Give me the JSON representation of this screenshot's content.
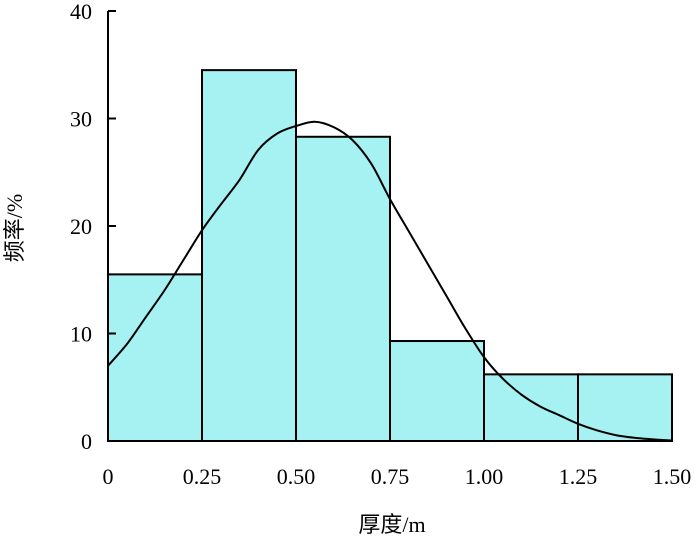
{
  "chart_data": {
    "type": "bar",
    "subtype": "histogram",
    "xlabel": "厚度/m",
    "ylabel": "频率/%",
    "xlim": [
      0,
      1.5
    ],
    "ylim": [
      0,
      40
    ],
    "x_ticks": [
      "0",
      "0.25",
      "0.50",
      "0.75",
      "1.00",
      "1.25",
      "1.50"
    ],
    "y_ticks": [
      "0",
      "10",
      "20",
      "30",
      "40"
    ],
    "bins": [
      {
        "from": 0.0,
        "to": 0.25,
        "value": 15.5
      },
      {
        "from": 0.25,
        "to": 0.5,
        "value": 34.5
      },
      {
        "from": 0.5,
        "to": 0.75,
        "value": 28.3
      },
      {
        "from": 0.75,
        "to": 1.0,
        "value": 9.3
      },
      {
        "from": 1.0,
        "to": 1.25,
        "value": 6.2
      },
      {
        "from": 1.25,
        "to": 1.5,
        "value": 6.2
      }
    ],
    "curve": {
      "x": [
        0.0,
        0.05,
        0.1,
        0.15,
        0.2,
        0.25,
        0.3,
        0.35,
        0.4,
        0.45,
        0.5,
        0.55,
        0.6,
        0.65,
        0.7,
        0.75,
        0.8,
        0.85,
        0.9,
        0.95,
        1.0,
        1.05,
        1.1,
        1.15,
        1.2,
        1.25,
        1.3,
        1.35,
        1.4,
        1.45,
        1.5
      ],
      "y": [
        7.0,
        9.0,
        11.5,
        14.0,
        16.8,
        19.6,
        22.0,
        24.3,
        27.1,
        28.6,
        29.3,
        29.7,
        29.2,
        28.0,
        25.8,
        22.5,
        19.5,
        16.5,
        13.5,
        10.5,
        7.8,
        5.8,
        4.3,
        3.2,
        2.4,
        1.6,
        1.0,
        0.55,
        0.3,
        0.15,
        0.05
      ]
    },
    "colors": {
      "bar_fill": "#A6F1F1",
      "bar_stroke": "#000000",
      "curve": "#000000"
    },
    "grid": false,
    "legend": "none"
  }
}
